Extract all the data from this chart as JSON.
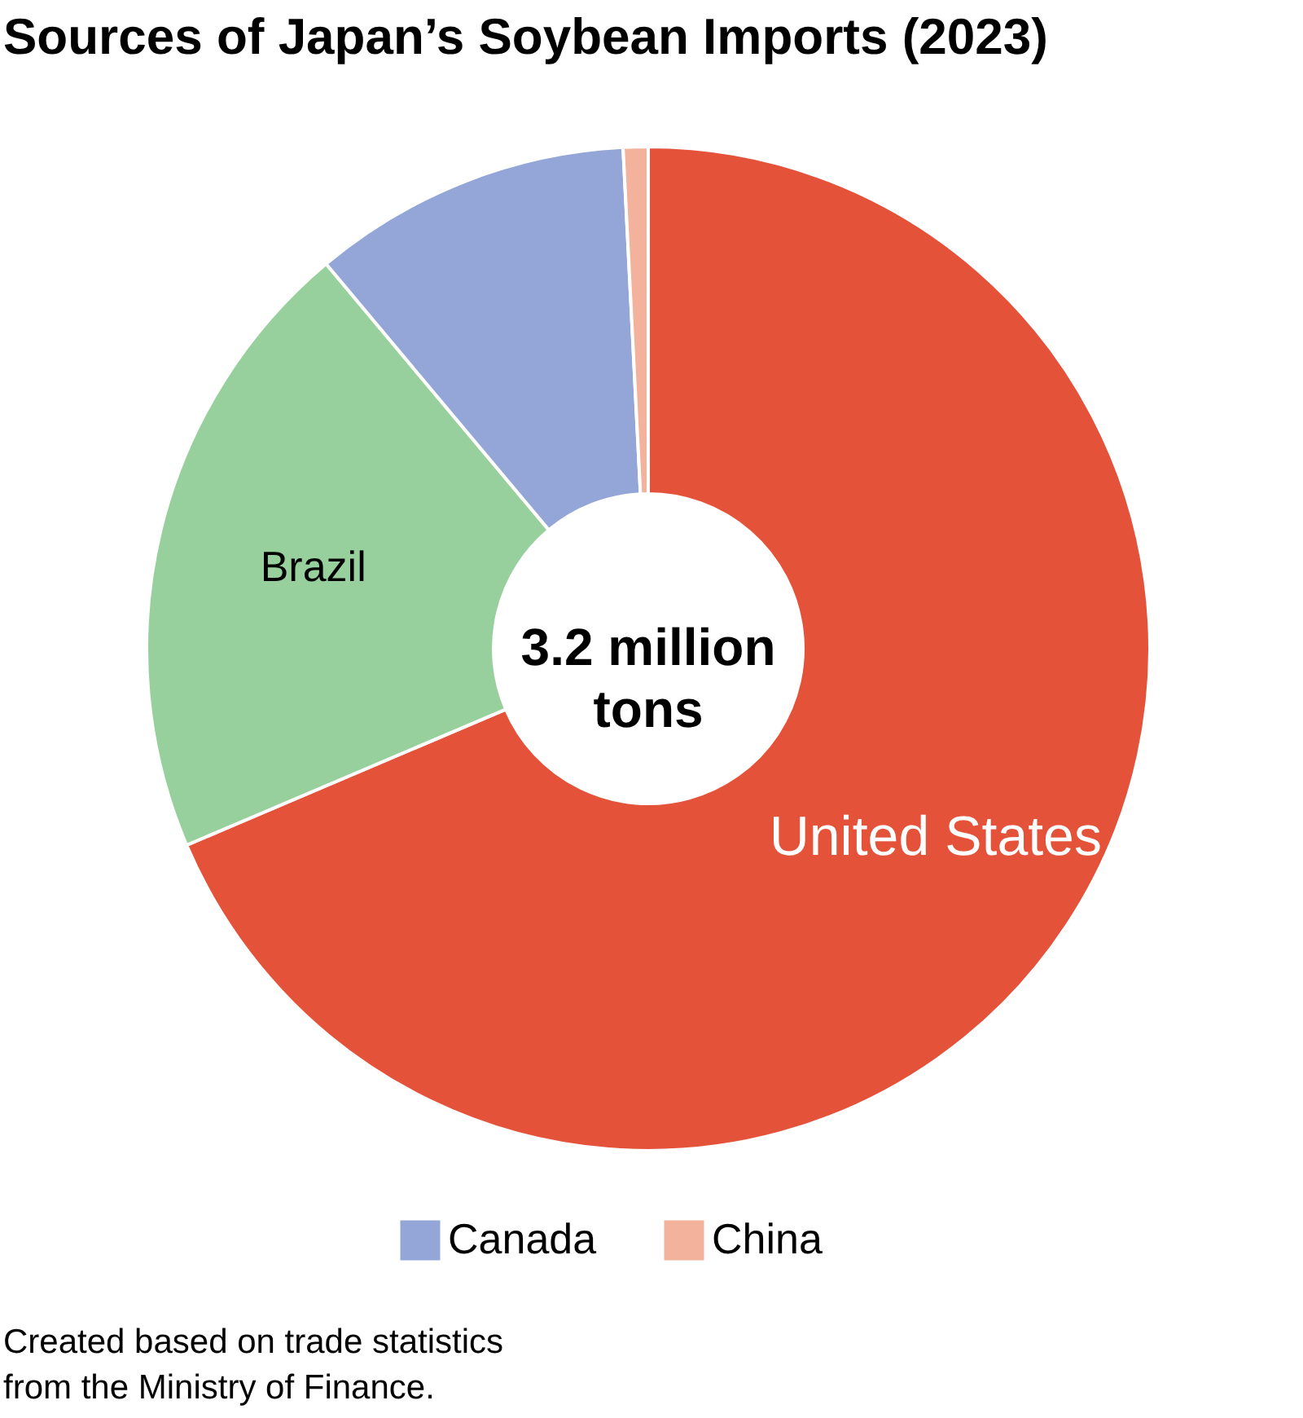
{
  "chart_data": {
    "type": "donut",
    "title": "Sources of Japan’s Soybean Imports (2023)",
    "categories": [
      "United States",
      "Brazil",
      "Canada",
      "China"
    ],
    "values": [
      68.6,
      20.3,
      10.3,
      0.8
    ],
    "colors": [
      "#e5523a",
      "#98d09d",
      "#93a6d7",
      "#f2b29c"
    ],
    "legend": "bottom",
    "annotations": [
      "3.2 million\ntons",
      "Created based on trade statistics\nfrom the Ministry of Finance."
    ]
  }
}
